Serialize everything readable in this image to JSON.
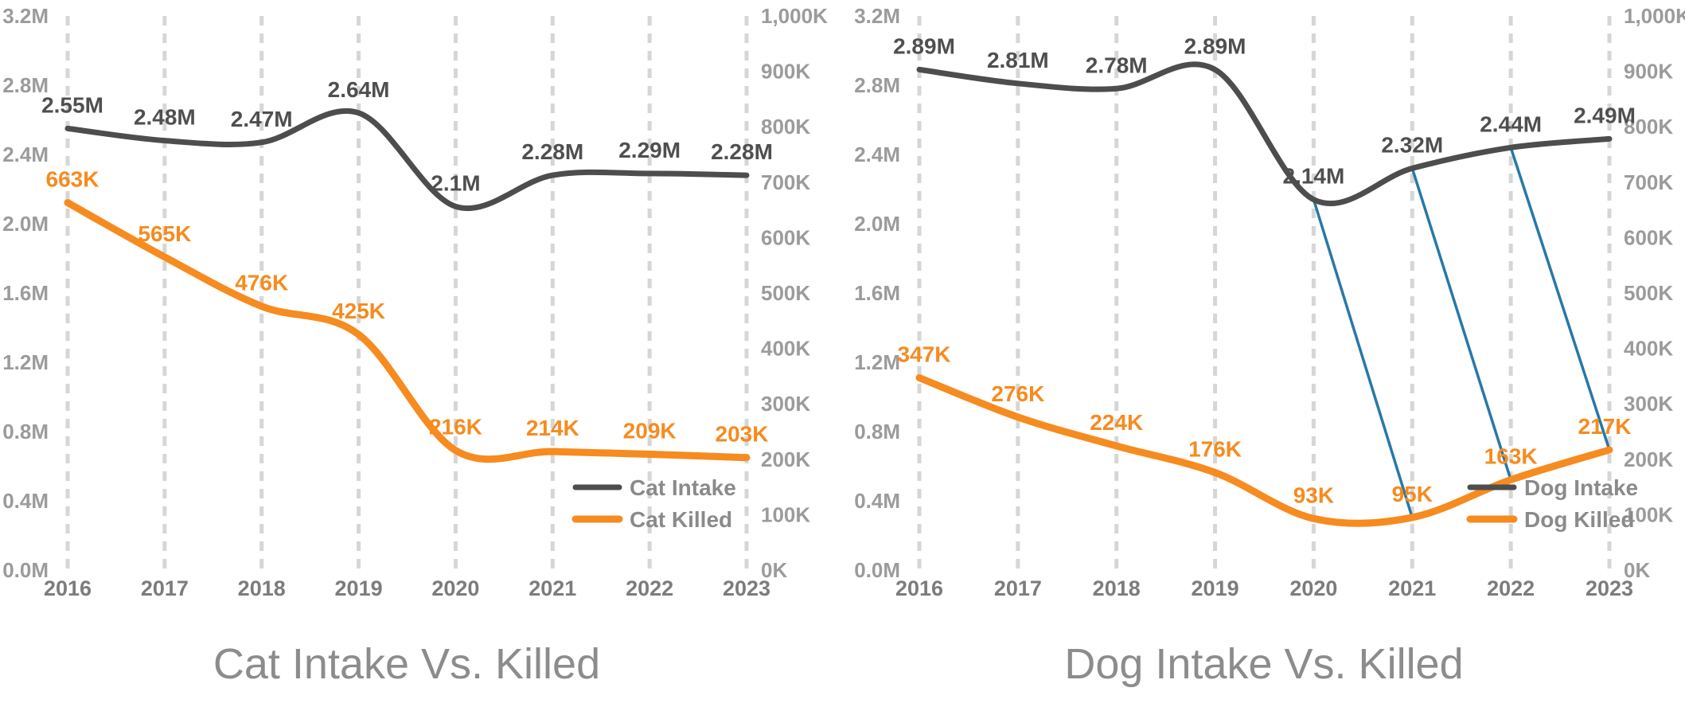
{
  "page": {
    "background": "#ffffff"
  },
  "chart_data": [
    {
      "type": "line",
      "title": "Cat Intake Vs. Killed",
      "categories": [
        "2016",
        "2017",
        "2018",
        "2019",
        "2020",
        "2021",
        "2022",
        "2023"
      ],
      "series": [
        {
          "name": "Cat Intake",
          "axis": "left",
          "color": "#4d4d4d",
          "values": [
            2550000,
            2480000,
            2470000,
            2640000,
            2100000,
            2280000,
            2290000,
            2280000
          ],
          "labels": [
            "2.55M",
            "2.48M",
            "2.47M",
            "2.64M",
            "2.1M",
            "2.28M",
            "2.29M",
            "2.28M"
          ]
        },
        {
          "name": "Cat Killed",
          "axis": "right",
          "color": "#f68b1f",
          "values": [
            663000,
            565000,
            476000,
            425000,
            216000,
            214000,
            209000,
            203000
          ],
          "labels": [
            "663K",
            "565K",
            "476K",
            "425K",
            "216K",
            "214K",
            "209K",
            "203K"
          ]
        }
      ],
      "left_axis": {
        "max": 3200000,
        "min": 0,
        "ticks": [
          "3.2M",
          "2.8M",
          "2.4M",
          "2.0M",
          "1.6M",
          "1.2M",
          "0.8M",
          "0.4M",
          "0.0M"
        ]
      },
      "right_axis": {
        "max": 1000000,
        "min": 0,
        "ticks": [
          "1,000K",
          "900K",
          "800K",
          "700K",
          "600K",
          "500K",
          "400K",
          "300K",
          "200K",
          "100K",
          "0K"
        ]
      },
      "legend": [
        {
          "label": "Cat Intake",
          "color": "#4d4d4d"
        },
        {
          "label": "Cat Killed",
          "color": "#f68b1f"
        }
      ],
      "grid": {
        "orientation": "vertical",
        "style": "dashed",
        "color": "#d6d6d6"
      }
    },
    {
      "type": "line",
      "title": "Dog Intake Vs. Killed",
      "categories": [
        "2016",
        "2017",
        "2018",
        "2019",
        "2020",
        "2021",
        "2022",
        "2023"
      ],
      "series": [
        {
          "name": "Dog Intake",
          "axis": "left",
          "color": "#4d4d4d",
          "values": [
            2890000,
            2810000,
            2780000,
            2890000,
            2140000,
            2320000,
            2440000,
            2490000
          ],
          "labels": [
            "2.89M",
            "2.81M",
            "2.78M",
            "2.89M",
            "2.14M",
            "2.32M",
            "2.44M",
            "2.49M"
          ]
        },
        {
          "name": "Dog Killed",
          "axis": "right",
          "color": "#f68b1f",
          "values": [
            347000,
            276000,
            224000,
            176000,
            93000,
            95000,
            163000,
            217000
          ],
          "labels": [
            "347K",
            "276K",
            "224K",
            "176K",
            "93K",
            "95K",
            "163K",
            "217K"
          ]
        }
      ],
      "left_axis": {
        "max": 3200000,
        "min": 0,
        "ticks": [
          "3.2M",
          "2.8M",
          "2.4M",
          "2.0M",
          "1.6M",
          "1.2M",
          "0.8M",
          "0.4M",
          "0.0M"
        ]
      },
      "right_axis": {
        "max": 1000000,
        "min": 0,
        "ticks": [
          "1,000K",
          "900K",
          "800K",
          "700K",
          "600K",
          "500K",
          "400K",
          "300K",
          "200K",
          "100K",
          "0K"
        ]
      },
      "legend": [
        {
          "label": "Dog Intake",
          "color": "#4d4d4d"
        },
        {
          "label": "Dog Killed",
          "color": "#f68b1f"
        }
      ],
      "grid": {
        "orientation": "vertical",
        "style": "dashed",
        "color": "#d6d6d6"
      },
      "connectors": {
        "color": "#2878a8",
        "from_series": "Dog Intake",
        "to_series": "Dog Killed",
        "pairs": [
          {
            "from_year": "2020",
            "to_year": "2021"
          },
          {
            "from_year": "2021",
            "to_year": "2022"
          },
          {
            "from_year": "2022",
            "to_year": "2023"
          }
        ]
      }
    }
  ]
}
